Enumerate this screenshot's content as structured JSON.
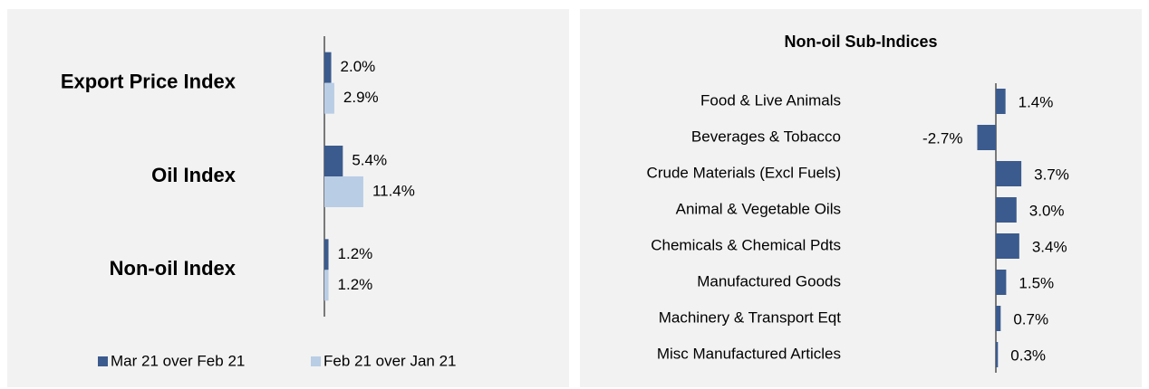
{
  "chart_data": [
    {
      "type": "hbar",
      "categories": [
        "Export Price Index",
        "Oil Index",
        "Non-oil Index"
      ],
      "series": [
        {
          "name": "Mar 21 over Feb 21",
          "color": "#3b5b8e",
          "values": [
            2.0,
            5.4,
            1.2
          ],
          "value_labels": [
            "2.0%",
            "5.4%",
            "1.2%"
          ]
        },
        {
          "name": "Feb 21 over Jan 21",
          "color": "#b9cde5",
          "values": [
            2.9,
            11.4,
            1.2
          ],
          "value_labels": [
            "2.9%",
            "11.4%",
            "1.2%"
          ]
        }
      ],
      "xlim": [
        0,
        30
      ],
      "legend": "bottom"
    },
    {
      "type": "hbar",
      "title": "Non-oil Sub-Indices",
      "categories": [
        "Food & Live Animals",
        "Beverages & Tobacco",
        "Crude Materials (Excl Fuels)",
        "Animal & Vegetable Oils",
        "Chemicals & Chemical Pdts",
        "Manufactured Goods",
        "Machinery & Transport Eqt",
        "Misc Manufactured Articles"
      ],
      "values": [
        1.4,
        -2.7,
        3.7,
        3.0,
        3.4,
        1.5,
        0.7,
        0.3
      ],
      "value_labels": [
        "1.4%",
        "-2.7%",
        "3.7%",
        "3.0%",
        "3.4%",
        "1.5%",
        "0.7%",
        "0.3%"
      ],
      "color": "#3b5b8e",
      "xlim": [
        -5,
        5
      ]
    }
  ]
}
